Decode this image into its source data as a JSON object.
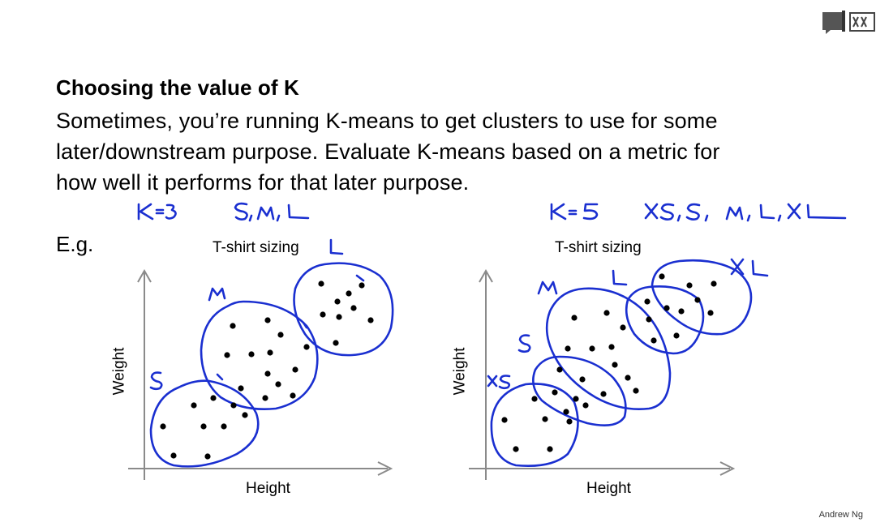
{
  "slide": {
    "title": "Choosing the value of K",
    "body_lines": [
      "Sometimes, you’re running K-means to get clusters to use for some",
      "later/downstream purpose. Evaluate K-means based on a metric for",
      "how well it performs for that later purpose."
    ],
    "example_label": "E.g.",
    "credit": "Andrew Ng"
  },
  "plots": [
    {
      "title": "T-shirt sizing",
      "xlabel": "Height",
      "ylabel": "Weight",
      "annotation_k": "K=3",
      "annotation_sizes": "S,M,L",
      "cluster_labels": [
        "S",
        "M",
        "L"
      ]
    },
    {
      "title": "T-shirt sizing",
      "xlabel": "Height",
      "ylabel": "Weight",
      "annotation_k": "K=5",
      "annotation_sizes": "XS, S, M, L, XL",
      "cluster_labels": [
        "XS",
        "S",
        "M",
        "L",
        "XL"
      ]
    }
  ],
  "colors": {
    "ink": "#1a2fd0",
    "axis": "#8a8a8a",
    "point": "#000000"
  },
  "icons": [
    "notes-icon",
    "subtitles-icon"
  ]
}
